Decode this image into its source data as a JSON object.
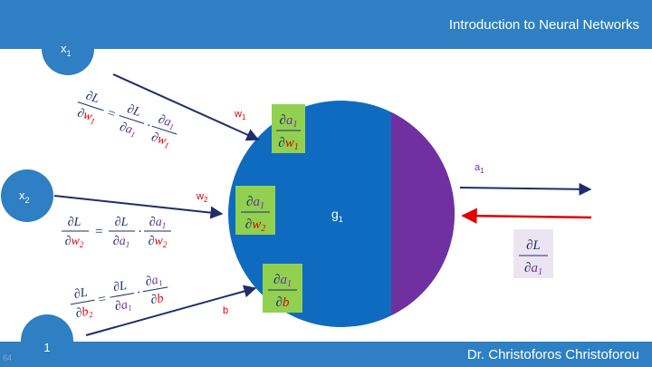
{
  "header": {
    "title": "Introduction to Neural Networks"
  },
  "footer": {
    "author": "Dr. Christoforos Christoforou",
    "page_number": "64"
  },
  "inputs": {
    "x1": {
      "base": "x",
      "sub": "1"
    },
    "x2": {
      "base": "x",
      "sub": "2"
    },
    "bias": {
      "label": "1"
    }
  },
  "weights": {
    "w1": {
      "base": "w",
      "sub": "1"
    },
    "w2": {
      "base": "w",
      "sub": "2"
    },
    "b": {
      "label": "b"
    }
  },
  "neuron": {
    "label_base": "g",
    "label_sub": "1"
  },
  "output": {
    "label_base": "a",
    "label_sub": "1"
  },
  "symbols": {
    "partial": "∂",
    "L": "L",
    "a": "a",
    "w": "w",
    "b": "b",
    "one": "1",
    "two": "2",
    "equals": "=",
    "dot": "·"
  },
  "colors": {
    "bar": "#2e7fc3",
    "circle_blue": "#0f6bbf",
    "circle_purple": "#7030a0",
    "box_green": "#92d050",
    "output_box": "#ebe5f1",
    "arrow_dark": "#1f2d6b",
    "arrow_red": "#e00000",
    "purple_text": "#7030a0",
    "red_text": "#e00000"
  }
}
